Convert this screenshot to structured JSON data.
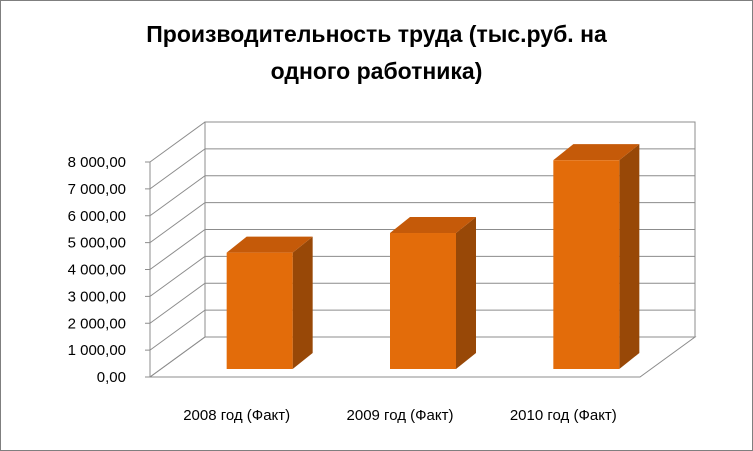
{
  "chart_data": {
    "type": "bar",
    "title_lines": [
      "Производительность труда (тыс.руб. на",
      "одного работника)"
    ],
    "categories": [
      "2008 год (Факт)",
      "2009 год  (Факт)",
      "2010 год  (Факт)"
    ],
    "values": [
      4330,
      5060,
      7770
    ],
    "ylim": [
      0,
      8000
    ],
    "yticks": [
      0,
      1000,
      2000,
      3000,
      4000,
      5000,
      6000,
      7000,
      8000
    ],
    "ytick_labels": [
      "0,00",
      "1 000,00",
      "2 000,00",
      "3 000,00",
      "4 000,00",
      "5 000,00",
      "6 000,00",
      "7 000,00",
      "8 000,00"
    ],
    "bar_color": "#E36C0A",
    "bar_side_color": "#984807",
    "bar_top_color": "#C55A09",
    "grid": true,
    "legend": "none",
    "style": "3d-column"
  }
}
